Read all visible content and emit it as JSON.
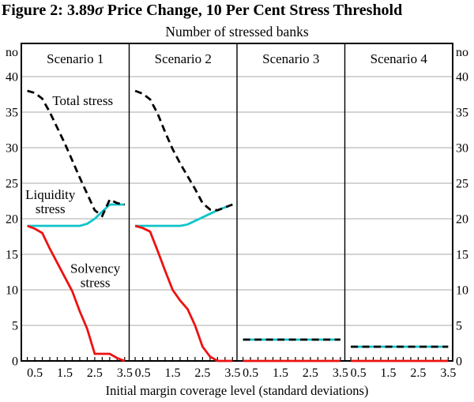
{
  "figure": {
    "title_prefix": "Figure 2: 3.89",
    "title_sigma": "σ",
    "title_suffix": " Price Change, 10 Per Cent Stress Threshold"
  },
  "chart_data": {
    "type": "line",
    "title": "Figure 2: 3.89σ Price Change, 10 Per Cent Stress Threshold",
    "subtitle": "Number of stressed banks",
    "xlabel": "Initial margin coverage level (standard deviations)",
    "ylabel": "no",
    "ylim": [
      0,
      44.4
    ],
    "grid": true,
    "x": [
      0.25,
      0.5,
      0.75,
      1,
      1.25,
      1.5,
      1.75,
      2,
      2.25,
      2.5,
      2.75,
      3,
      3.25,
      3.5
    ],
    "x_tick_labels": [
      "0.5",
      "1.5",
      "2.5",
      "3.5"
    ],
    "x_tick_label_values": [
      0.5,
      1.5,
      2.5,
      3.5
    ],
    "y_ticks": [
      40,
      35,
      30,
      25,
      20,
      15,
      10,
      5,
      0
    ],
    "colors": {
      "total": "#000000",
      "liquidity": "#10c4ca",
      "solvency": "#ee1111",
      "gridline": "#a9a9a9"
    },
    "series_labels": {
      "total": "Total stress",
      "liquidity": "Liquidity stress",
      "solvency": "Solvency stress"
    },
    "panels": [
      {
        "name": "Scenario 1",
        "total": [
          38,
          37.7,
          36.9,
          35,
          32.8,
          30.6,
          28.2,
          25.8,
          23.5,
          21.2,
          20.4,
          22.7,
          22.2,
          22
        ],
        "liquidity": [
          19,
          19,
          19,
          19,
          19,
          19,
          19,
          19,
          19.3,
          20,
          21,
          22,
          22,
          22
        ],
        "solvency": [
          19,
          18.6,
          18,
          15.8,
          13.8,
          11.8,
          9.8,
          7,
          4.5,
          1,
          1,
          1,
          0.4,
          0
        ]
      },
      {
        "name": "Scenario 2",
        "total": [
          38,
          37.6,
          36.8,
          34.8,
          32.2,
          29.8,
          27.8,
          26,
          24.2,
          22.2,
          21.3,
          21.2,
          21.6,
          22
        ],
        "liquidity": [
          19,
          19,
          19,
          19,
          19,
          19,
          19,
          19.2,
          19.7,
          20.2,
          20.7,
          21.2,
          21.6,
          22
        ],
        "solvency": [
          19,
          18.7,
          18.2,
          15.5,
          12.7,
          10,
          8.5,
          7.3,
          5,
          2,
          0.6,
          0,
          0,
          0
        ]
      },
      {
        "name": "Scenario 3",
        "total": [
          3,
          3,
          3,
          3,
          3,
          3,
          3,
          3,
          3,
          3,
          3,
          3,
          3,
          3
        ],
        "liquidity": [
          3,
          3,
          3,
          3,
          3,
          3,
          3,
          3,
          3,
          3,
          3,
          3,
          3,
          3
        ],
        "solvency": [
          0,
          0,
          0,
          0,
          0,
          0,
          0,
          0,
          0,
          0,
          0,
          0,
          0,
          0
        ]
      },
      {
        "name": "Scenario 4",
        "total": [
          2,
          2,
          2,
          2,
          2,
          2,
          2,
          2,
          2,
          2,
          2,
          2,
          2,
          2
        ],
        "liquidity": [
          2,
          2,
          2,
          2,
          2,
          2,
          2,
          2,
          2,
          2,
          2,
          2,
          2,
          2
        ],
        "solvency": [
          0,
          0,
          0,
          0,
          0,
          0,
          0,
          0,
          0,
          0,
          0,
          0,
          0,
          0
        ]
      }
    ],
    "annotations": [
      {
        "panel": 0,
        "lines": [
          "Total stress"
        ],
        "color": "#000000",
        "x": 2.1,
        "y": 36.0
      },
      {
        "panel": 0,
        "lines": [
          "Liquidity",
          "stress"
        ],
        "color": "#10c4ca",
        "x": 1.02,
        "y": 22.8
      },
      {
        "panel": 0,
        "lines": [
          "Solvency",
          "stress"
        ],
        "color": "#ee1111",
        "x": 2.52,
        "y": 12.4
      }
    ]
  }
}
